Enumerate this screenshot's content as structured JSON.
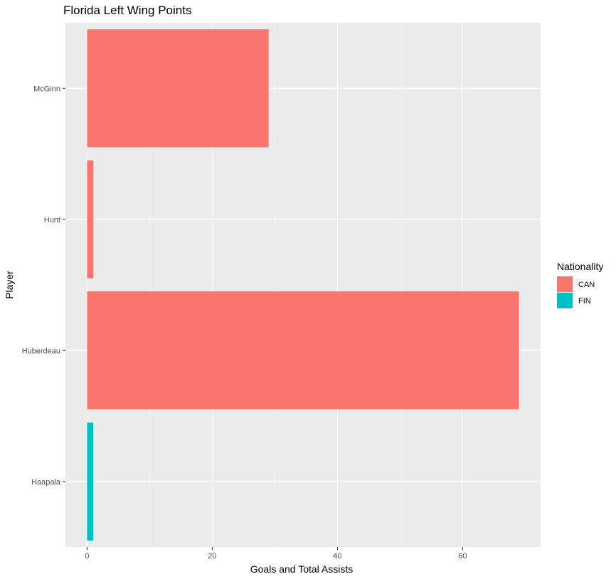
{
  "chart_data": {
    "type": "bar",
    "orientation": "horizontal",
    "title": "Florida Left Wing Points",
    "xlabel": "Goals and Total Assists",
    "ylabel": "Player",
    "categories": [
      "Haapala",
      "Huberdeau",
      "Hunt",
      "McGinn"
    ],
    "values": [
      1,
      69,
      1,
      29
    ],
    "nationality": [
      "FIN",
      "CAN",
      "CAN",
      "CAN"
    ],
    "xlim": [
      -3.45,
      72.45
    ],
    "xticks": [
      0,
      20,
      40,
      60
    ],
    "grid": true,
    "legend": {
      "title": "Nationality",
      "position": "right",
      "entries": [
        {
          "label": "CAN",
          "color": "#F8766D"
        },
        {
          "label": "FIN",
          "color": "#00BFC4"
        }
      ]
    },
    "colors": {
      "CAN": "#F8766D",
      "FIN": "#00BFC4"
    },
    "panel_background": "#EBEBEB",
    "grid_color": "#FFFFFF"
  }
}
